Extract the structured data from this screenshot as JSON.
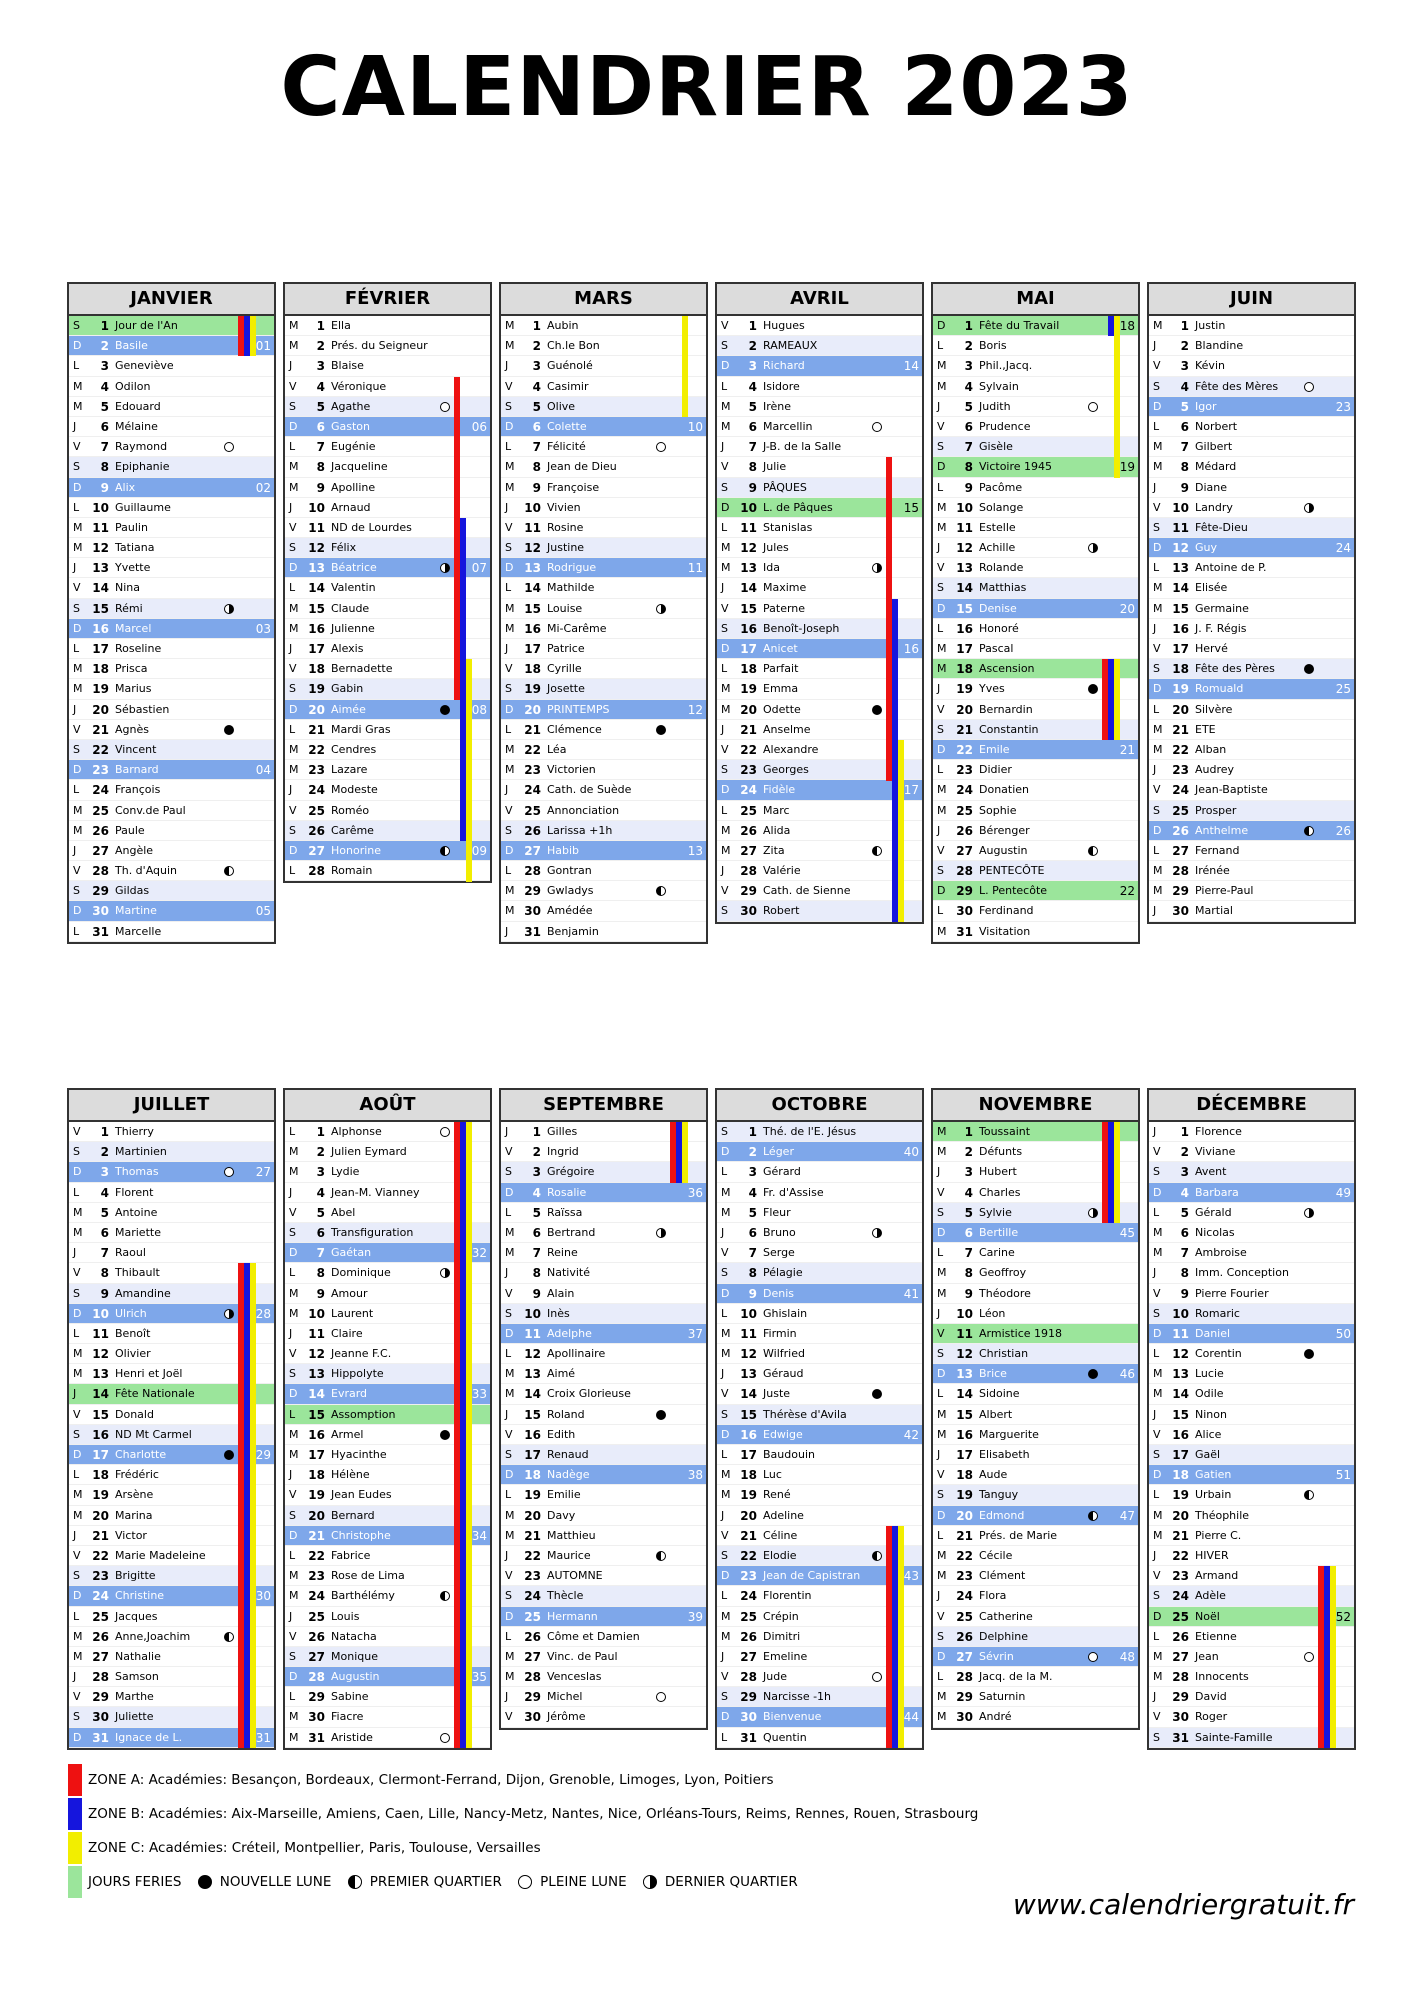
{
  "title": "CALENDRIER 2023",
  "website": "www.calendriergratuit.fr",
  "colors": {
    "zone_a": "#ee1111",
    "zone_b": "#1515dd",
    "zone_c": "#f2ee00",
    "holiday": "#9be59b",
    "sunday": "#7ea7ea",
    "saturday": "#e8ecfa"
  },
  "legend": {
    "zone_a": "ZONE A: Académies: Besançon, Bordeaux, Clermont-Ferrand, Dijon, Grenoble, Limoges, Lyon, Poitiers",
    "zone_b": "ZONE B: Académies: Aix-Marseille, Amiens, Caen, Lille, Nancy-Metz, Nantes, Nice, Orléans-Tours, Reims, Rennes, Rouen, Strasbourg",
    "zone_c": "ZONE C: Académies: Créteil, Montpellier, Paris, Toulouse, Versailles",
    "feries": "JOURS FERIES",
    "nouvelle": "NOUVELLE LUNE",
    "premier": "PREMIER QUARTIER",
    "pleine": "PLEINE LUNE",
    "dernier": "DERNIER QUARTIER"
  },
  "months": [
    {
      "name": "JANVIER",
      "start_dow": 6,
      "weeks": {
        "2": "01",
        "9": "02",
        "16": "03",
        "23": "04",
        "30": "05"
      },
      "moons": {
        "7": "pleine",
        "15": "dernier",
        "21": "nouvelle",
        "28": "premier"
      },
      "holidays": [
        1
      ],
      "saints": [
        "Jour de l'An",
        "Basile",
        "Geneviève",
        "Odilon",
        "Edouard",
        "Mélaine",
        "Raymond",
        "Epiphanie",
        "Alix",
        "Guillaume",
        "Paulin",
        "Tatiana",
        "Yvette",
        "Nina",
        "Rémi",
        "Marcel",
        "Roseline",
        "Prisca",
        "Marius",
        "Sébastien",
        "Agnès",
        "Vincent",
        "Barnard",
        "François",
        "Conv.de Paul",
        "Paule",
        "Angèle",
        "Th. d'Aquin",
        "Gildas",
        "Martine",
        "Marcelle"
      ],
      "zones": [
        [
          "a",
          1,
          2
        ],
        [
          "b",
          1,
          2
        ],
        [
          "c",
          1,
          2
        ]
      ]
    },
    {
      "name": "FÉVRIER",
      "start_dow": 2,
      "weeks": {
        "6": "06",
        "13": "07",
        "20": "08",
        "27": "09"
      },
      "moons": {
        "5": "pleine",
        "13": "dernier",
        "20": "nouvelle",
        "27": "premier"
      },
      "holidays": [],
      "saints": [
        "Ella",
        "Prés. du Seigneur",
        "Blaise",
        "Véronique",
        "Agathe",
        "Gaston",
        "Eugénie",
        "Jacqueline",
        "Apolline",
        "Arnaud",
        "ND de Lourdes",
        "Félix",
        "Béatrice",
        "Valentin",
        "Claude",
        "Julienne",
        "Alexis",
        "Bernadette",
        "Gabin",
        "Aimée",
        "Mardi Gras",
        "Cendres",
        "Lazare",
        "Modeste",
        "Roméo",
        "Carême",
        "Honorine",
        "Romain"
      ],
      "zones": [
        [
          "a",
          4,
          19
        ],
        [
          "b",
          11,
          26
        ],
        [
          "c",
          18,
          28
        ]
      ]
    },
    {
      "name": "MARS",
      "start_dow": 2,
      "weeks": {
        "6": "10",
        "13": "11",
        "20": "12",
        "27": "13"
      },
      "moons": {
        "7": "pleine",
        "15": "dernier",
        "21": "nouvelle",
        "29": "premier"
      },
      "holidays": [],
      "saints": [
        "Aubin",
        "Ch.le Bon",
        "Guénolé",
        "Casimir",
        "Olive",
        "Colette",
        "Félicité",
        "Jean de Dieu",
        "Françoise",
        "Vivien",
        "Rosine",
        "Justine",
        "Rodrigue",
        "Mathilde",
        "Louise",
        "Mi-Carême",
        "Patrice",
        "Cyrille",
        "Josette",
        "PRINTEMPS",
        "Clémence",
        "Léa",
        "Victorien",
        "Cath. de Suède",
        "Annonciation",
        "Larissa +1h",
        "Habib",
        "Gontran",
        "Gwladys",
        "Amédée",
        "Benjamin"
      ],
      "zones": [
        [
          "c",
          1,
          5
        ]
      ]
    },
    {
      "name": "AVRIL",
      "start_dow": 5,
      "weeks": {
        "3": "14",
        "10": "15",
        "17": "16",
        "24": "17"
      },
      "moons": {
        "6": "pleine",
        "13": "dernier",
        "20": "nouvelle",
        "27": "premier"
      },
      "holidays": [
        10
      ],
      "saints": [
        "Hugues",
        "RAMEAUX",
        "Richard",
        "Isidore",
        "Irène",
        "Marcellin",
        "J-B. de la Salle",
        "Julie",
        "PÂQUES",
        "L. de Pâques",
        "Stanislas",
        "Jules",
        "Ida",
        "Maxime",
        "Paterne",
        "Benoît-Joseph",
        "Anicet",
        "Parfait",
        "Emma",
        "Odette",
        "Anselme",
        "Alexandre",
        "Georges",
        "Fidèle",
        "Marc",
        "Alida",
        "Zita",
        "Valérie",
        "Cath. de Sienne",
        "Robert"
      ],
      "zones": [
        [
          "a",
          8,
          23
        ],
        [
          "b",
          15,
          30
        ],
        [
          "c",
          22,
          30
        ]
      ]
    },
    {
      "name": "MAI",
      "start_dow": 0,
      "weeks": {
        "1": "18",
        "8": "19",
        "15": "20",
        "22": "21",
        "29": "22"
      },
      "moons": {
        "5": "pleine",
        "12": "dernier",
        "19": "nouvelle",
        "27": "premier"
      },
      "holidays": [
        1,
        8,
        18,
        29
      ],
      "saints": [
        "Fête du Travail",
        "Boris",
        "Phil.,Jacq.",
        "Sylvain",
        "Judith",
        "Prudence",
        "Gisèle",
        "Victoire 1945",
        "Pacôme",
        "Solange",
        "Estelle",
        "Achille",
        "Rolande",
        "Matthias",
        "Denise",
        "Honoré",
        "Pascal",
        "Ascension",
        "Yves",
        "Bernardin",
        "Constantin",
        "Emile",
        "Didier",
        "Donatien",
        "Sophie",
        "Bérenger",
        "Augustin",
        "PENTECÔTE",
        "L. Pentecôte",
        "Ferdinand",
        "Visitation"
      ],
      "zones": [
        [
          "a",
          18,
          21
        ],
        [
          "b",
          1,
          1
        ],
        [
          "b",
          18,
          21
        ],
        [
          "c",
          1,
          8
        ],
        [
          "c",
          18,
          21
        ]
      ]
    },
    {
      "name": "JUIN",
      "start_dow": 3,
      "weeks": {
        "5": "23",
        "12": "24",
        "19": "25",
        "26": "26"
      },
      "moons": {
        "4": "pleine",
        "10": "dernier",
        "18": "nouvelle",
        "26": "premier"
      },
      "holidays": [],
      "saints": [
        "Justin",
        "Blandine",
        "Kévin",
        "Fête des Mères",
        "Igor",
        "Norbert",
        "Gilbert",
        "Médard",
        "Diane",
        "Landry",
        "Fête-Dieu",
        "Guy",
        "Antoine de P.",
        "Elisée",
        "Germaine",
        "J. F. Régis",
        "Hervé",
        "Fête des Pères",
        "Romuald",
        "Silvère",
        "ETE",
        "Alban",
        "Audrey",
        "Jean-Baptiste",
        "Prosper",
        "Anthelme",
        "Fernand",
        "Irénée",
        "Pierre-Paul",
        "Martial"
      ],
      "zones": []
    },
    {
      "name": "JUILLET",
      "start_dow": 5,
      "weeks": {
        "3": "27",
        "10": "28",
        "17": "29",
        "24": "30",
        "31": "31"
      },
      "moons": {
        "3": "pleine",
        "10": "dernier",
        "17": "nouvelle",
        "26": "premier"
      },
      "holidays": [
        14
      ],
      "saints": [
        "Thierry",
        "Martinien",
        "Thomas",
        "Florent",
        "Antoine",
        "Mariette",
        "Raoul",
        "Thibault",
        "Amandine",
        "Ulrich",
        "Benoît",
        "Olivier",
        "Henri et Joël",
        "Fête Nationale",
        "Donald",
        "ND Mt Carmel",
        "Charlotte",
        "Frédéric",
        "Arsène",
        "Marina",
        "Victor",
        "Marie Madeleine",
        "Brigitte",
        "Christine",
        "Jacques",
        "Anne,Joachim",
        "Nathalie",
        "Samson",
        "Marthe",
        "Juliette",
        "Ignace de L."
      ],
      "zones": [
        [
          "a",
          8,
          31
        ],
        [
          "b",
          8,
          31
        ],
        [
          "c",
          8,
          31
        ]
      ]
    },
    {
      "name": "AOÛT",
      "start_dow": 1,
      "weeks": {
        "7": "32",
        "14": "33",
        "21": "34",
        "28": "35"
      },
      "moons": {
        "1": "pleine",
        "8": "dernier",
        "16": "nouvelle",
        "24": "premier",
        "31": "pleine"
      },
      "holidays": [
        15
      ],
      "saints": [
        "Alphonse",
        "Julien Eymard",
        "Lydie",
        "Jean-M. Vianney",
        "Abel",
        "Transfiguration",
        "Gaétan",
        "Dominique",
        "Amour",
        "Laurent",
        "Claire",
        "Jeanne F.C.",
        "Hippolyte",
        "Evrard",
        "Assomption",
        "Armel",
        "Hyacinthe",
        "Hélène",
        "Jean Eudes",
        "Bernard",
        "Christophe",
        "Fabrice",
        "Rose de Lima",
        "Barthélémy",
        "Louis",
        "Natacha",
        "Monique",
        "Augustin",
        "Sabine",
        "Fiacre",
        "Aristide"
      ],
      "zones": [
        [
          "a",
          1,
          31
        ],
        [
          "b",
          1,
          31
        ],
        [
          "c",
          1,
          31
        ]
      ]
    },
    {
      "name": "SEPTEMBRE",
      "start_dow": 4,
      "weeks": {
        "4": "36",
        "11": "37",
        "18": "38",
        "25": "39"
      },
      "moons": {
        "6": "dernier",
        "15": "nouvelle",
        "22": "premier",
        "29": "pleine"
      },
      "holidays": [],
      "saints": [
        "Gilles",
        "Ingrid",
        "Grégoire",
        "Rosalie",
        "Raïssa",
        "Bertrand",
        "Reine",
        "Nativité",
        "Alain",
        "Inès",
        "Adelphe",
        "Apollinaire",
        "Aimé",
        "Croix Glorieuse",
        "Roland",
        "Edith",
        "Renaud",
        "Nadège",
        "Emilie",
        "Davy",
        "Matthieu",
        "Maurice",
        "AUTOMNE",
        "Thècle",
        "Hermann",
        "Côme et Damien",
        "Vinc. de Paul",
        "Venceslas",
        "Michel",
        "Jérôme"
      ],
      "zones": [
        [
          "a",
          1,
          3
        ],
        [
          "b",
          1,
          3
        ],
        [
          "c",
          1,
          3
        ]
      ]
    },
    {
      "name": "OCTOBRE",
      "start_dow": 6,
      "weeks": {
        "2": "40",
        "9": "41",
        "16": "42",
        "23": "43",
        "30": "44"
      },
      "moons": {
        "6": "dernier",
        "14": "nouvelle",
        "22": "premier",
        "28": "pleine"
      },
      "holidays": [],
      "saints": [
        "Thé. de l'E. Jésus",
        "Léger",
        "Gérard",
        "Fr. d'Assise",
        "Fleur",
        "Bruno",
        "Serge",
        "Pélagie",
        "Denis",
        "Ghislain",
        "Firmin",
        "Wilfried",
        "Géraud",
        "Juste",
        "Thérèse d'Avila",
        "Edwige",
        "Baudouin",
        "Luc",
        "René",
        "Adeline",
        "Céline",
        "Elodie",
        "Jean de Capistran",
        "Florentin",
        "Crépin",
        "Dimitri",
        "Emeline",
        "Jude",
        "Narcisse -1h",
        "Bienvenue",
        "Quentin"
      ],
      "zones": [
        [
          "a",
          21,
          31
        ],
        [
          "b",
          21,
          31
        ],
        [
          "c",
          21,
          31
        ]
      ]
    },
    {
      "name": "NOVEMBRE",
      "start_dow": 2,
      "weeks": {
        "6": "45",
        "13": "46",
        "20": "47",
        "27": "48"
      },
      "moons": {
        "5": "dernier",
        "13": "nouvelle",
        "20": "premier",
        "27": "pleine"
      },
      "holidays": [
        1,
        11
      ],
      "saints": [
        "Toussaint",
        "Défunts",
        "Hubert",
        "Charles",
        "Sylvie",
        "Bertille",
        "Carine",
        "Geoffroy",
        "Théodore",
        "Léon",
        "Armistice 1918",
        "Christian",
        "Brice",
        "Sidoine",
        "Albert",
        "Marguerite",
        "Elisabeth",
        "Aude",
        "Tanguy",
        "Edmond",
        "Prés. de Marie",
        "Cécile",
        "Clément",
        "Flora",
        "Catherine",
        "Delphine",
        "Sévrin",
        "Jacq. de la M.",
        "Saturnin",
        "André"
      ],
      "zones": [
        [
          "a",
          1,
          5
        ],
        [
          "b",
          1,
          5
        ],
        [
          "c",
          1,
          5
        ]
      ]
    },
    {
      "name": "DÉCEMBRE",
      "start_dow": 4,
      "weeks": {
        "4": "49",
        "11": "50",
        "18": "51",
        "25": "52"
      },
      "moons": {
        "5": "dernier",
        "12": "nouvelle",
        "19": "premier",
        "27": "pleine"
      },
      "holidays": [
        25
      ],
      "saints": [
        "Florence",
        "Viviane",
        "Avent",
        "Barbara",
        "Gérald",
        "Nicolas",
        "Ambroise",
        "Imm. Conception",
        "Pierre Fourier",
        "Romaric",
        "Daniel",
        "Corentin",
        "Lucie",
        "Odile",
        "Ninon",
        "Alice",
        "Gaël",
        "Gatien",
        "Urbain",
        "Théophile",
        "Pierre C.",
        "HIVER",
        "Armand",
        "Adèle",
        "Noël",
        "Etienne",
        "Jean",
        "Innocents",
        "David",
        "Roger",
        "Sainte-Famille"
      ],
      "zones": [
        [
          "a",
          23,
          31
        ],
        [
          "b",
          23,
          31
        ],
        [
          "c",
          23,
          31
        ]
      ]
    }
  ]
}
